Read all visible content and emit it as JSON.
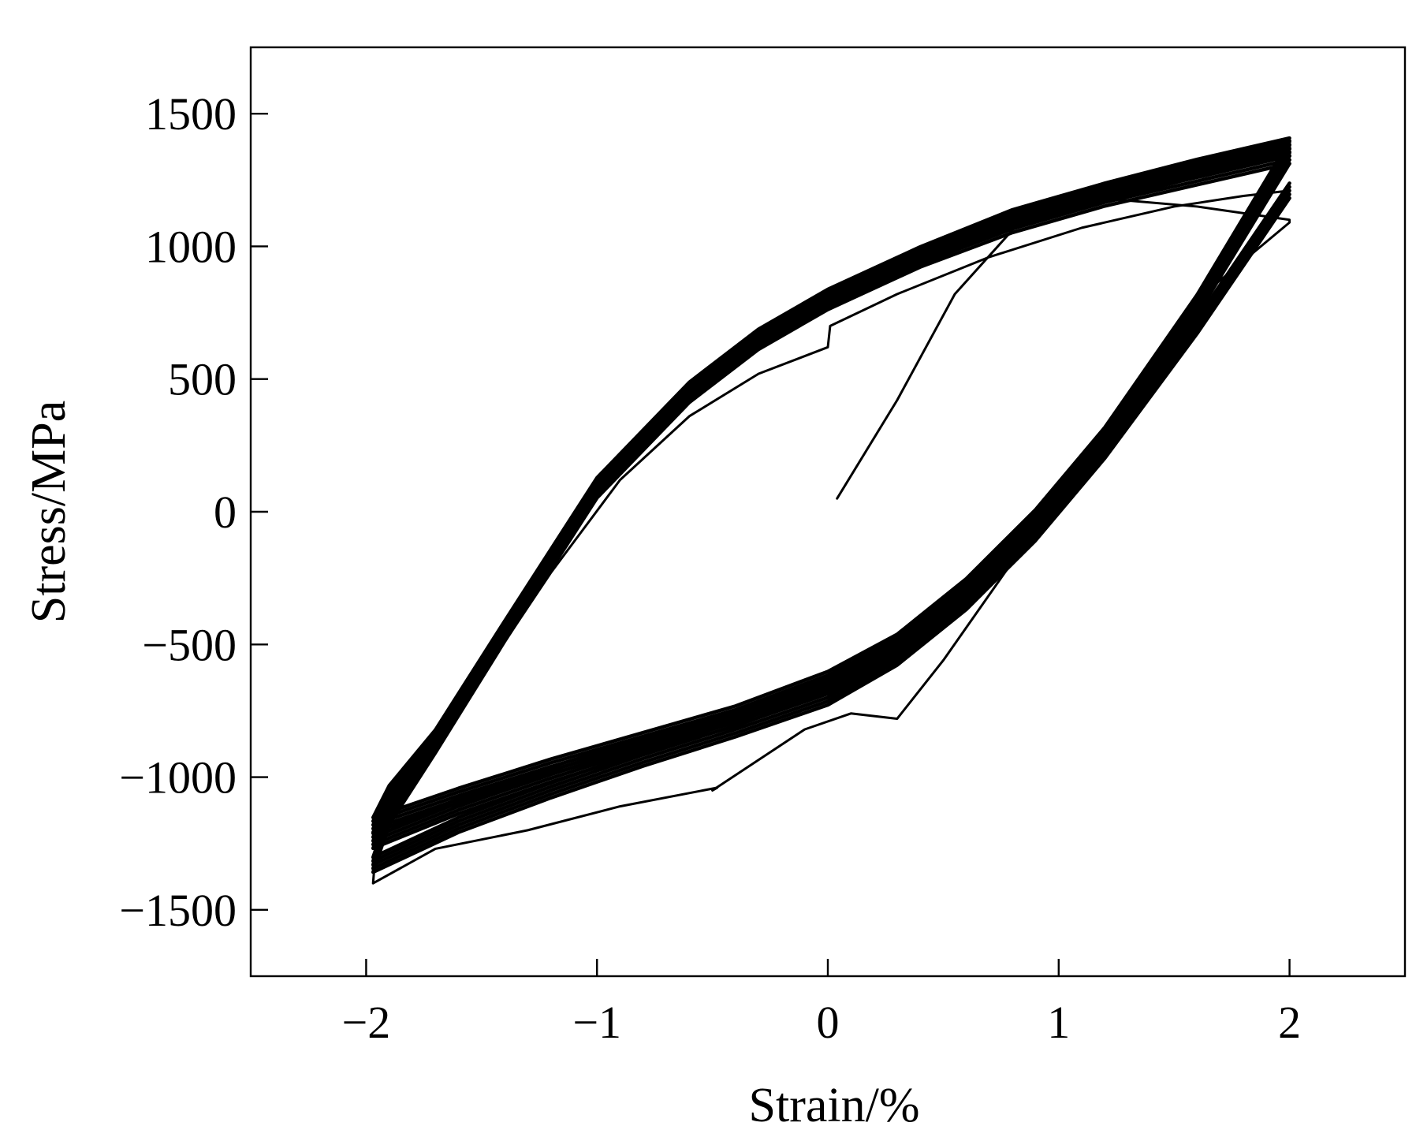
{
  "chart_data": {
    "type": "line",
    "title": "",
    "xlabel": "Strain/%",
    "ylabel": "Stress/MPa",
    "xlim": [
      -2.5,
      2.5
    ],
    "ylim": [
      -1750,
      1750
    ],
    "x_ticks": [
      -2,
      -1,
      0,
      1,
      2
    ],
    "x_tick_labels": [
      "−2",
      "−1",
      "0",
      "1",
      "2"
    ],
    "y_ticks": [
      -1500,
      -1000,
      -500,
      0,
      500,
      1000,
      1500
    ],
    "y_tick_labels": [
      "−1500",
      "−1000",
      "−500",
      "0",
      "500",
      "1000",
      "1500"
    ],
    "grid": false,
    "legend": "none",
    "line_color": "#000000",
    "series": [
      {
        "x": [
          0.04,
          0.3,
          0.55,
          0.85
        ],
        "y": [
          50,
          420,
          820,
          1110
        ]
      },
      {
        "x": [
          0.85,
          1.2,
          1.6,
          2.0,
          2.0,
          1.6,
          1.3,
          1.0,
          0.5,
          0.3,
          0.1,
          -0.1,
          -0.5,
          -0.48
        ],
        "y": [
          1110,
          1180,
          1150,
          1100,
          1090,
          800,
          420,
          60,
          -560,
          -780,
          -760,
          -820,
          -1050,
          -1040
        ]
      },
      {
        "x": [
          -0.48,
          -0.9,
          -1.3,
          -1.7,
          -1.97,
          -1.95,
          -1.75,
          -1.5,
          -1.2,
          -0.9,
          -0.6,
          -0.3,
          0.0,
          0.01,
          0.3,
          0.7,
          1.1,
          1.5,
          1.8,
          2.0
        ],
        "y": [
          -1040,
          -1110,
          -1200,
          -1270,
          -1400,
          -1180,
          -900,
          -620,
          -230,
          120,
          360,
          520,
          620,
          700,
          820,
          960,
          1070,
          1150,
          1190,
          1210
        ]
      },
      {
        "x": [
          2.0,
          1.6,
          1.2,
          0.9,
          0.6,
          0.3,
          0.0,
          -0.4,
          -0.8,
          -1.2,
          -1.6,
          -1.97,
          -1.9,
          -1.7,
          -1.4,
          -1.0,
          -0.6,
          -0.3,
          0.0,
          0.4,
          0.8,
          1.2,
          1.6,
          1.8,
          2.0
        ],
        "y": [
          1210,
          700,
          230,
          -80,
          -340,
          -550,
          -700,
          -820,
          -930,
          -1050,
          -1180,
          -1330,
          -1150,
          -880,
          -460,
          80,
          440,
          640,
          790,
          950,
          1080,
          1180,
          1260,
          1300,
          1340
        ]
      },
      {
        "x": [
          2.0,
          1.6,
          1.2,
          0.9,
          0.6,
          0.3,
          0.0,
          -0.4,
          -0.8,
          -1.2,
          -1.6,
          -1.97,
          -1.9,
          -1.7,
          -1.4,
          -1.0,
          -0.6,
          -0.3,
          0.0,
          0.4,
          0.8,
          1.2,
          1.6,
          1.8,
          2.0
        ],
        "y": [
          1340,
          770,
          270,
          -40,
          -300,
          -510,
          -650,
          -780,
          -880,
          -990,
          -1110,
          -1240,
          -1090,
          -860,
          -450,
          90,
          450,
          650,
          800,
          960,
          1100,
          1200,
          1290,
          1330,
          1370
        ]
      },
      {
        "x": [
          2.0,
          1.6,
          1.2,
          0.9,
          0.6,
          0.3,
          0.0,
          -0.4,
          -0.8,
          -1.2,
          -1.6,
          -1.97,
          -1.9,
          -1.7,
          -1.4,
          -1.0,
          -0.6,
          -0.3,
          0.0,
          0.4,
          0.8,
          1.2,
          1.6,
          1.8,
          2.0
        ],
        "y": [
          1370,
          790,
          290,
          -20,
          -280,
          -490,
          -630,
          -760,
          -860,
          -960,
          -1070,
          -1180,
          -1060,
          -850,
          -440,
          100,
          460,
          660,
          810,
          970,
          1110,
          1210,
          1300,
          1340,
          1380
        ]
      }
    ]
  }
}
